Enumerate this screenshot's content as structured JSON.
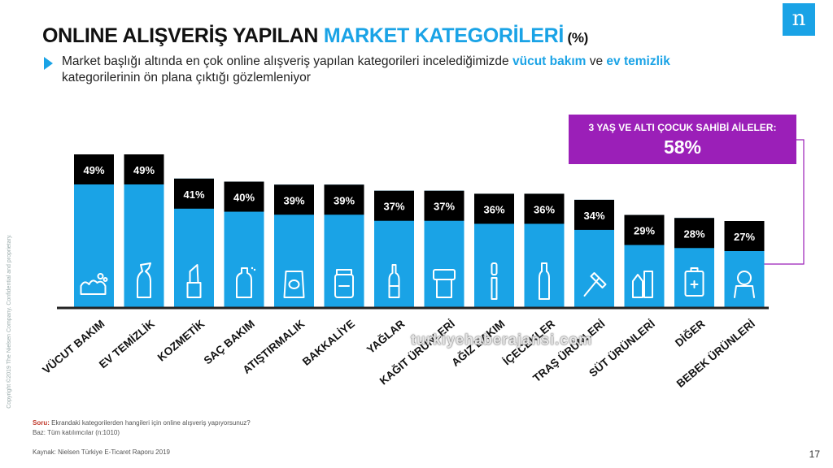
{
  "title": {
    "part1": "ONLINE ALIŞVERİŞ YAPILAN ",
    "part2": "MARKET KATEGORİLERİ",
    "part3": " (%)"
  },
  "logo_letter": "n",
  "subtitle": {
    "text1": "Market başlığı altında en çok online alışveriş yapılan kategorileri incelediğimizde ",
    "hl1": "vücut bakım",
    "text2": " ve ",
    "hl2": "ev temizlik",
    "text3": " kategorilerinin ön plana çıktığı gözlemleniyor"
  },
  "callout": {
    "label": "3 YAŞ VE ALTI ÇOCUK SAHİBİ AİLELER:",
    "value": "58%"
  },
  "chart_data": {
    "type": "bar",
    "categories": [
      "VÜCUT BAKIM",
      "EV TEMİZLİK",
      "KOZMETİK",
      "SAÇ BAKIM",
      "ATIŞTIRMALIK",
      "BAKKALİYE",
      "YAĞLAR",
      "KAĞIT ÜRÜNLERİ",
      "AĞIZ BAKIM",
      "İÇECEKLER",
      "TRAŞ ÜRÜNLERİ",
      "SÜT ÜRÜNLERİ",
      "DİĞER",
      "BEBEK ÜRÜNLERİ"
    ],
    "values": [
      49,
      49,
      41,
      40,
      39,
      39,
      37,
      37,
      36,
      36,
      34,
      29,
      28,
      27
    ],
    "value_labels": [
      "49%",
      "49%",
      "41%",
      "40%",
      "39%",
      "39%",
      "37%",
      "37%",
      "36%",
      "36%",
      "34%",
      "29%",
      "28%",
      "27%"
    ],
    "icons": [
      "bath-foam-icon",
      "cleaner-bottle-icon",
      "lipstick-icon",
      "spray-bottle-icon",
      "snack-bag-icon",
      "jar-icon",
      "oil-bottle-icon",
      "paper-towel-icon",
      "toothbrush-icon",
      "drink-bottle-icon",
      "razor-icon",
      "milk-carton-icon",
      "battery-icon",
      "baby-icon"
    ],
    "bar_color": "#1aa3e6",
    "label_bg_color": "#000000",
    "ylim": [
      0,
      55
    ]
  },
  "footer": {
    "soru_label": "Soru:",
    "soru_text": " Ekrandaki kategorilerden hangileri için online alışveriş yapıyorsunuz?",
    "base": "Baz: Tüm katılımcılar (n:1010)",
    "source": "Kaynak: Nielsen Türkiye E-Ticaret Raporu 2019"
  },
  "side_text": "Copyright ©2019 The Nielsen Company. Confidential and proprietary.",
  "page_number": "17",
  "watermark": "turkiyehaberajansi.com"
}
